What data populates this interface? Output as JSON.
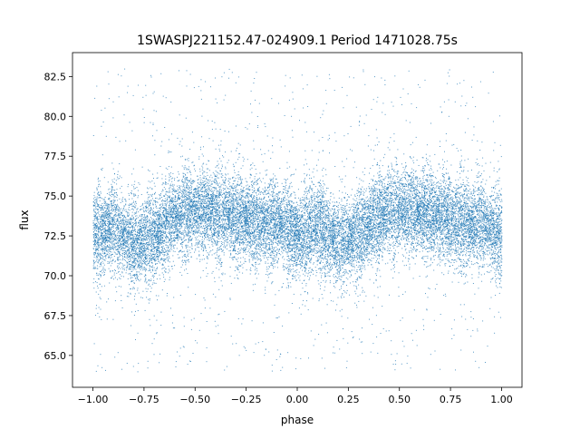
{
  "chart_data": {
    "type": "scatter",
    "title": "1SWASPJ221152.47-024909.1 Period 1471028.75s",
    "xlabel": "phase",
    "ylabel": "flux",
    "xlim": [
      -1.1,
      1.1
    ],
    "ylim": [
      63.0,
      84.0
    ],
    "xticks": [
      -1.0,
      -0.75,
      -0.5,
      -0.25,
      0.0,
      0.25,
      0.5,
      0.75,
      1.0
    ],
    "xtick_labels": [
      "−1.00",
      "−0.75",
      "−0.50",
      "−0.25",
      "0.00",
      "0.25",
      "0.50",
      "0.75",
      "1.00"
    ],
    "yticks": [
      65.0,
      67.5,
      70.0,
      72.5,
      75.0,
      77.5,
      80.0,
      82.5
    ],
    "ytick_labels": [
      "65.0",
      "67.5",
      "70.0",
      "72.5",
      "75.0",
      "77.5",
      "80.0",
      "82.5"
    ],
    "grid": false,
    "marker_color": "#1f77b4",
    "phase_range": [
      -1.0,
      1.0
    ],
    "median_flux_profile": {
      "phase": [
        -1.0,
        -0.9,
        -0.8,
        -0.7,
        -0.6,
        -0.5,
        -0.4,
        -0.3,
        -0.2,
        -0.1,
        0.0,
        0.1,
        0.2,
        0.3,
        0.4,
        0.5,
        0.6,
        0.7,
        0.8,
        0.9,
        1.0
      ],
      "flux": [
        72.5,
        73.2,
        72.0,
        72.6,
        73.8,
        74.2,
        74.0,
        73.7,
        73.3,
        73.4,
        72.5,
        73.2,
        72.0,
        72.6,
        73.8,
        74.2,
        74.0,
        73.7,
        73.3,
        73.4,
        72.5
      ]
    },
    "flux_scatter_sigma": 1.2,
    "point_count": 20000
  }
}
